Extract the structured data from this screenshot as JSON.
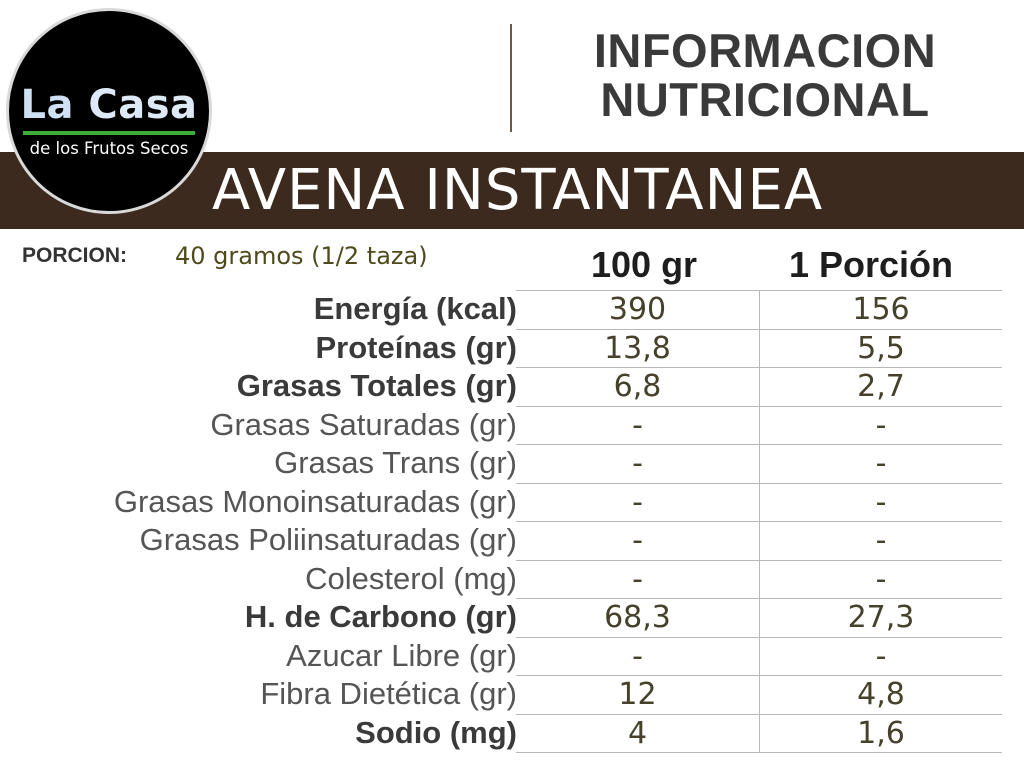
{
  "logo": {
    "main_a": "La",
    "main_b": "Casa",
    "sub": "de los Frutos Secos"
  },
  "header": {
    "title_line1": "INFORMACION",
    "title_line2": "NUTRICIONAL"
  },
  "product": {
    "name": "AVENA INSTANTANEA"
  },
  "portion": {
    "label": "PORCION:",
    "value": "40 gramos (1/2 taza)"
  },
  "columns": {
    "per100": "100 gr",
    "perPortion": "1 Porción"
  },
  "colors": {
    "band": "#3b2a1d",
    "logo_accent": "#3cae3c",
    "value_text": "#45412a"
  },
  "nutrients": [
    {
      "label": "Energía (kcal)",
      "bold": true,
      "per100": "390",
      "perPortion": "156"
    },
    {
      "label": "Proteínas (gr)",
      "bold": true,
      "per100": "13,8",
      "perPortion": "5,5"
    },
    {
      "label": "Grasas Totales (gr)",
      "bold": true,
      "per100": "6,8",
      "perPortion": "2,7"
    },
    {
      "label": "Grasas Saturadas (gr)",
      "bold": false,
      "per100": "-",
      "perPortion": "-"
    },
    {
      "label": "Grasas Trans (gr)",
      "bold": false,
      "per100": "-",
      "perPortion": "-"
    },
    {
      "label": "Grasas Monoinsaturadas (gr)",
      "bold": false,
      "per100": "-",
      "perPortion": "-"
    },
    {
      "label": "Grasas Poliinsaturadas (gr)",
      "bold": false,
      "per100": "-",
      "perPortion": "-"
    },
    {
      "label": "Colesterol (mg)",
      "bold": false,
      "per100": "-",
      "perPortion": "-"
    },
    {
      "label": "H. de Carbono (gr)",
      "bold": true,
      "per100": "68,3",
      "perPortion": "27,3"
    },
    {
      "label": "Azucar Libre (gr)",
      "bold": false,
      "per100": "-",
      "perPortion": "-"
    },
    {
      "label": "Fibra Dietética (gr)",
      "bold": false,
      "per100": "12",
      "perPortion": "4,8"
    },
    {
      "label": "Sodio (mg)",
      "bold": true,
      "per100": "4",
      "perPortion": "1,6"
    }
  ]
}
